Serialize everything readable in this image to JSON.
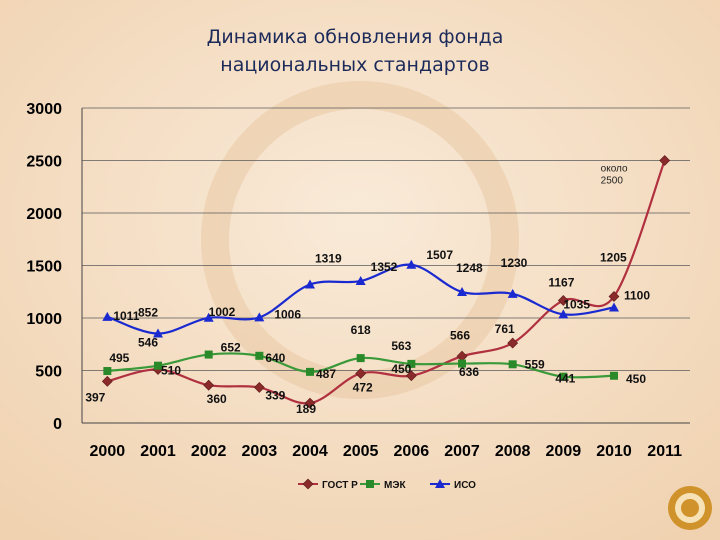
{
  "chart_data": {
    "type": "line",
    "title_lines": [
      "Динамика обновления фонда",
      "национальных стандартов"
    ],
    "xlabel": "",
    "ylabel": "",
    "ylim": [
      0,
      3000
    ],
    "yticks": [
      0,
      500,
      1000,
      1500,
      2000,
      2500,
      3000
    ],
    "categories": [
      "2000",
      "2001",
      "2002",
      "2003",
      "2004",
      "2005",
      "2006",
      "2007",
      "2008",
      "2009",
      "2010",
      "2011"
    ],
    "grid": true,
    "legend_position": "bottom",
    "series": [
      {
        "name": "ГОСТ Р",
        "color": "#b03040",
        "marker": "diamond",
        "marker_color": "#8a2a2a",
        "values": [
          397,
          510,
          360,
          339,
          189,
          472,
          450,
          636,
          761,
          1167,
          1205,
          2500
        ],
        "labels": [
          "397",
          "510",
          "360",
          "339",
          "189",
          "472",
          "450",
          "636",
          "761",
          "1167",
          "1205",
          ""
        ]
      },
      {
        "name": "МЭК",
        "color": "#3a9a3a",
        "marker": "square",
        "marker_color": "#2a8a2a",
        "values": [
          495,
          546,
          652,
          640,
          487,
          618,
          563,
          566,
          559,
          441,
          450,
          null
        ],
        "labels": [
          "495",
          "546",
          "652",
          "640",
          "487",
          "618",
          "563",
          "566",
          "559",
          "441",
          "450",
          ""
        ]
      },
      {
        "name": "ИСО",
        "color": "#1a2ad0",
        "marker": "triangle",
        "marker_color": "#1a2ad0",
        "values": [
          1011,
          852,
          1002,
          1006,
          1319,
          1352,
          1507,
          1248,
          1230,
          1035,
          1100,
          null
        ],
        "labels": [
          "1011",
          "852",
          "1002",
          "1006",
          "1319",
          "1352",
          "1507",
          "1248",
          "1230",
          "1035",
          "1100",
          ""
        ]
      }
    ],
    "annotation": {
      "lines": [
        "около",
        "2500"
      ]
    }
  }
}
